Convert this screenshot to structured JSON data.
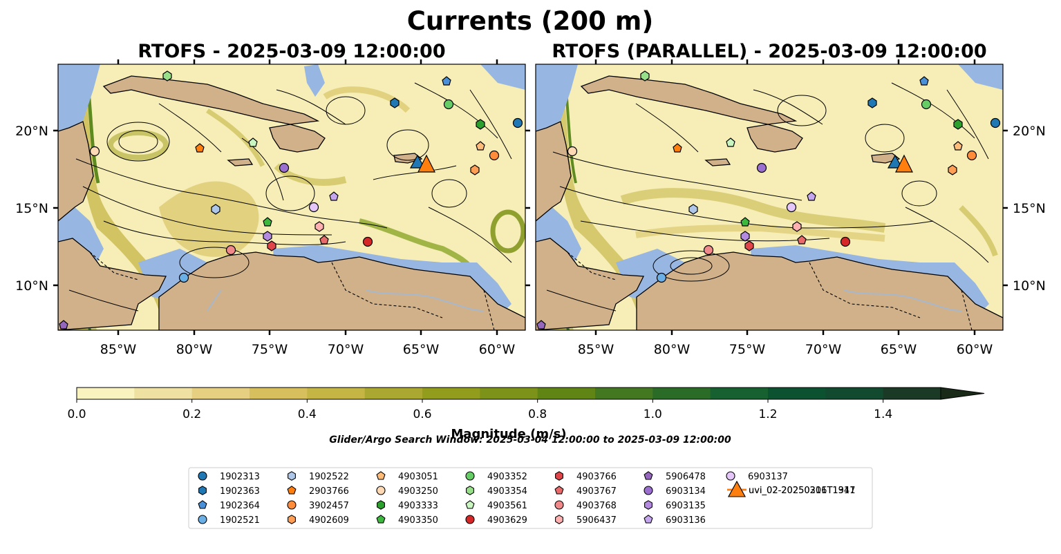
{
  "figure": {
    "suptitle": "Currents (200 m)",
    "search_window": "Glider/Argo Search Window: 2025-03-04 12:00:00 to 2025-03-09 12:00:00"
  },
  "chart_data": [
    {
      "type": "heatmap",
      "title": "RTOFS - 2025-03-09 12:00:00",
      "xlim": [
        -89.5,
        -57.8
      ],
      "ylim": [
        7.0,
        24.3
      ],
      "x_ticks": [
        -85,
        -80,
        -75,
        -70,
        -65,
        -60
      ],
      "x_tick_labels": [
        "85°W",
        "80°W",
        "75°W",
        "70°W",
        "65°W",
        "60°W"
      ],
      "y_ticks": [
        10,
        15,
        20
      ],
      "y_tick_labels": [
        "10°N",
        "15°N",
        "20°N"
      ],
      "y_axis_side": "left"
    },
    {
      "type": "heatmap",
      "title": "RTOFS (PARALLEL) - 2025-03-09 12:00:00",
      "xlim": [
        -89.5,
        -57.8
      ],
      "ylim": [
        7.0,
        24.3
      ],
      "x_ticks": [
        -85,
        -80,
        -75,
        -70,
        -65,
        -60
      ],
      "x_tick_labels": [
        "85°W",
        "80°W",
        "75°W",
        "70°W",
        "65°W",
        "60°W"
      ],
      "y_ticks": [
        10,
        15,
        20
      ],
      "y_tick_labels": [
        "10°N",
        "15°N",
        "20°N"
      ],
      "y_axis_side": "right"
    }
  ],
  "colorbar": {
    "label": "Magnitude (m/s)",
    "range": [
      0.0,
      1.5
    ],
    "ticks": [
      0.0,
      0.2,
      0.4,
      0.6,
      0.8,
      1.0,
      1.2,
      1.4
    ],
    "tick_labels": [
      "0.0",
      "0.2",
      "0.4",
      "0.6",
      "0.8",
      "1.0",
      "1.2",
      "1.4"
    ],
    "colors": [
      "#f9f3bf",
      "#efe1a1",
      "#e6cf80",
      "#d6bf5c",
      "#c4b545",
      "#aaa830",
      "#929d1d",
      "#7c9218",
      "#608515",
      "#437820",
      "#2b6b28",
      "#176030",
      "#0d5230",
      "#124a30",
      "#1a3a25",
      "#1a2a18"
    ],
    "extend": "max"
  },
  "map_colors": {
    "ocean_shallow": "#97b6e1",
    "land": "#d1b18a",
    "streamline": "#000000"
  },
  "platforms": [
    {
      "id": "1902313",
      "color": "#1f77b4",
      "marker": "circle",
      "lon": -58.2,
      "lat": 20.5
    },
    {
      "id": "1902363",
      "color": "#1f77b4",
      "marker": "hexagon",
      "lon": -66.7,
      "lat": 21.8
    },
    {
      "id": "1902364",
      "color": "#4a90d9",
      "marker": "pentagon",
      "lon": -63.0,
      "lat": 23.2
    },
    {
      "id": "1902521",
      "color": "#6ab0e6",
      "marker": "circle",
      "lon": -80.6,
      "lat": 10.5
    },
    {
      "id": "1902522",
      "color": "#aec7e8",
      "marker": "hexagon",
      "lon": -78.7,
      "lat": 14.9
    },
    {
      "id": "2903766",
      "color": "#ff7f0e",
      "marker": "pentagon",
      "lon": -79.8,
      "lat": 18.8
    },
    {
      "id": "3902457",
      "color": "#ff8c3a",
      "marker": "circle",
      "lon": -59.9,
      "lat": 18.4
    },
    {
      "id": "4902609",
      "color": "#ff9f55",
      "marker": "hexagon",
      "lon": -61.2,
      "lat": 17.5
    },
    {
      "id": "4903051",
      "color": "#ffbb78",
      "marker": "pentagon",
      "lon": -61.0,
      "lat": 19.0
    },
    {
      "id": "4903250",
      "color": "#ffd9b3",
      "marker": "circle",
      "lon": -87.2,
      "lat": 18.7
    },
    {
      "id": "4903333",
      "color": "#2ca02c",
      "marker": "hexagon",
      "lon": -61.1,
      "lat": 20.4
    },
    {
      "id": "4903350",
      "color": "#3cb83c",
      "marker": "pentagon",
      "lon": -75.0,
      "lat": 14.1
    },
    {
      "id": "4903352",
      "color": "#66cc66",
      "marker": "circle",
      "lon": -62.8,
      "lat": 21.7
    },
    {
      "id": "4903354",
      "color": "#98df8a",
      "marker": "hexagon",
      "lon": -81.7,
      "lat": 23.5
    },
    {
      "id": "4903561",
      "color": "#c8f5c0",
      "marker": "pentagon",
      "lon": -75.9,
      "lat": 19.2
    },
    {
      "id": "4903629",
      "color": "#d62728",
      "marker": "circle",
      "lon": -68.5,
      "lat": 12.8
    },
    {
      "id": "4903766",
      "color": "#e0454a",
      "marker": "hexagon",
      "lon": -74.7,
      "lat": 12.6
    },
    {
      "id": "4903767",
      "color": "#e86a6a",
      "marker": "pentagon",
      "lon": -71.5,
      "lat": 12.9
    },
    {
      "id": "4903768",
      "color": "#f08a8a",
      "marker": "circle",
      "lon": -77.5,
      "lat": 12.3
    },
    {
      "id": "5906437",
      "color": "#ffb0b0",
      "marker": "hexagon",
      "lon": -71.7,
      "lat": 13.8
    },
    {
      "id": "5906478",
      "color": "#9467bd",
      "marker": "pentagon",
      "lon": -89.2,
      "lat": 7.4
    },
    {
      "id": "6903134",
      "color": "#9a6fcf",
      "marker": "circle",
      "lon": -74.1,
      "lat": 17.6
    },
    {
      "id": "6903135",
      "color": "#b48ae0",
      "marker": "hexagon",
      "lon": -75.0,
      "lat": 13.2
    },
    {
      "id": "6903136",
      "color": "#c5a5ee",
      "marker": "pentagon",
      "lon": -70.8,
      "lat": 15.8
    },
    {
      "id": "6903137",
      "color": "#e4c6f9",
      "marker": "circle",
      "lon": -72.1,
      "lat": 15.1
    },
    {
      "id": "uvi_02-20250211T1347",
      "color": "#1f77b4",
      "marker": "triangle",
      "lon": -65.1,
      "lat": 18.0
    },
    {
      "id": "uvi_02-20250306T1911",
      "color": "#ff7f0e",
      "marker": "triangle",
      "lon": -64.6,
      "lat": 17.9
    }
  ]
}
